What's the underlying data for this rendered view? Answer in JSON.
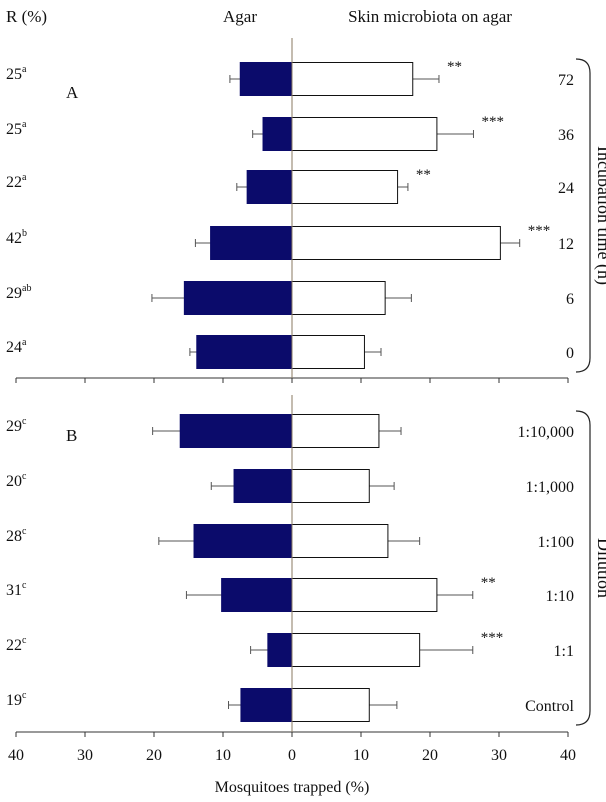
{
  "chart_data": {
    "type": "bar",
    "orientation": "horizontal-diverging",
    "header": {
      "r_label": "R (%)",
      "left_label": "Agar",
      "right_label": "Skin microbiota on agar"
    },
    "xlabel": "Mosquitoes trapped (%)",
    "xlim": [
      -40,
      40
    ],
    "xticks": [
      "40",
      "30",
      "20",
      "10",
      "0",
      "10",
      "20",
      "30",
      "40"
    ],
    "colors": {
      "agar": "#0b0b6b",
      "skin": "#ffffff",
      "outline": "#111111",
      "axis": "#555555"
    },
    "panels": [
      {
        "label": "A",
        "side_label": "Incubation time (h)",
        "rows": [
          {
            "category": "72",
            "r_value": "25",
            "r_sup": "a",
            "agar": 7.5,
            "agar_err": 1.5,
            "skin": 17.5,
            "skin_err": 3.8,
            "sig": "**"
          },
          {
            "category": "36",
            "r_value": "25",
            "r_sup": "a",
            "agar": 4.2,
            "agar_err": 1.5,
            "skin": 21.0,
            "skin_err": 5.3,
            "sig": "***"
          },
          {
            "category": "24",
            "r_value": "22",
            "r_sup": "a",
            "agar": 6.5,
            "agar_err": 1.5,
            "skin": 15.3,
            "skin_err": 1.5,
            "sig": "**"
          },
          {
            "category": "12",
            "r_value": "42",
            "r_sup": "b",
            "agar": 11.8,
            "agar_err": 2.2,
            "skin": 30.2,
            "skin_err": 2.8,
            "sig": "***"
          },
          {
            "category": "6",
            "r_value": "29",
            "r_sup": "ab",
            "agar": 15.6,
            "agar_err": 4.7,
            "skin": 13.5,
            "skin_err": 3.8,
            "sig": ""
          },
          {
            "category": "0",
            "r_value": "24",
            "r_sup": "a",
            "agar": 13.8,
            "agar_err": 1.0,
            "skin": 10.5,
            "skin_err": 2.4,
            "sig": ""
          }
        ]
      },
      {
        "label": "B",
        "side_label": "Dilution",
        "rows": [
          {
            "category": "1:10,000",
            "r_value": "29",
            "r_sup": "c",
            "agar": 16.2,
            "agar_err": 4.0,
            "skin": 12.6,
            "skin_err": 3.2,
            "sig": ""
          },
          {
            "category": "1:1,000",
            "r_value": "20",
            "r_sup": "c",
            "agar": 8.4,
            "agar_err": 3.3,
            "skin": 11.2,
            "skin_err": 3.6,
            "sig": ""
          },
          {
            "category": "1:100",
            "r_value": "28",
            "r_sup": "c",
            "agar": 14.2,
            "agar_err": 5.1,
            "skin": 13.9,
            "skin_err": 4.6,
            "sig": ""
          },
          {
            "category": "1:10",
            "r_value": "31",
            "r_sup": "c",
            "agar": 10.2,
            "agar_err": 5.1,
            "skin": 21.0,
            "skin_err": 5.2,
            "sig": "**"
          },
          {
            "category": "1:1",
            "r_value": "22",
            "r_sup": "c",
            "agar": 3.5,
            "agar_err": 2.5,
            "skin": 18.5,
            "skin_err": 7.7,
            "sig": "***"
          },
          {
            "category": "Control",
            "r_value": "19",
            "r_sup": "c",
            "agar": 7.4,
            "agar_err": 1.8,
            "skin": 11.2,
            "skin_err": 4.0,
            "sig": ""
          }
        ]
      }
    ]
  }
}
